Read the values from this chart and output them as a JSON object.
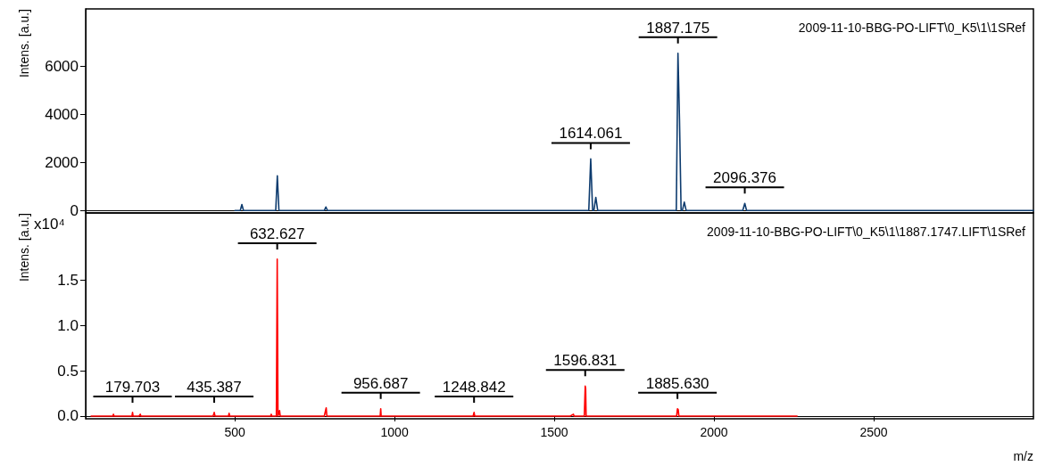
{
  "chart_data": [
    {
      "type": "line",
      "title": "2009-11-10-BBG-PO-LIFT\\0_K5\\1\\1SRef",
      "ylabel": "Intens. [a.u.]",
      "tick_labels": "y",
      "xlim": [
        33,
        3000
      ],
      "xticks": [
        500,
        1000,
        1500,
        2000,
        2500
      ],
      "ylim": [
        -100,
        8400
      ],
      "yticks": [
        0,
        2000,
        4000,
        6000
      ],
      "series": [
        {
          "color": "#0d3b6e",
          "x": [
            500,
            517,
            522,
            527,
            626,
            628,
            633,
            638,
            700,
            780,
            785,
            790,
            1100,
            1500,
            1608,
            1614.061,
            1620,
            1624,
            1630,
            1636,
            1700,
            1880,
            1882,
            1887.175,
            1892,
            1897,
            1901,
            1907,
            1913,
            2090,
            2096.376,
            2102,
            2500,
            3000
          ],
          "values": [
            0,
            0,
            250,
            0,
            0,
            0,
            1450,
            0,
            0,
            0,
            150,
            0,
            0,
            0,
            0,
            2150,
            0,
            0,
            550,
            0,
            0,
            0,
            0,
            6550,
            3800,
            0,
            0,
            350,
            0,
            0,
            300,
            0,
            0,
            0
          ]
        }
      ],
      "annotations": [
        {
          "text": "1614.061",
          "x": 1614.061,
          "y": 2150
        },
        {
          "text": "1887.175",
          "x": 1887.175,
          "y": 6550
        },
        {
          "text": "2096.376",
          "x": 2096.376,
          "y": 300
        }
      ]
    },
    {
      "type": "line",
      "title": "2009-11-10-BBG-PO-LIFT\\0_K5\\1\\1887.1747.LIFT\\1SRef",
      "xlabel": "m/z",
      "ylabel": "Intens. [a.u.]",
      "xlim": [
        33,
        3000
      ],
      "xticks": [
        500,
        1000,
        1500,
        2000,
        2500
      ],
      "ylim": [
        -0.03,
        2.24
      ],
      "yticks": [
        {
          "value": 0,
          "label": "0.0"
        },
        {
          "value": 0.5,
          "label": "0.5"
        },
        {
          "value": 1,
          "label": "1.0"
        },
        {
          "value": 1.5,
          "label": "1.5"
        }
      ],
      "series": [
        {
          "color": "#ff0000",
          "x": [
            50,
            118,
            120,
            122,
            178,
            179.703,
            181.4,
            200,
            204,
            206,
            300,
            432,
            435.387,
            438,
            480,
            482,
            484,
            600,
            612,
            614,
            616,
            630,
            631.4,
            632.627,
            633.8,
            635,
            640,
            642,
            700,
            780,
            786,
            788,
            795,
            950,
            955,
            956.687,
            958,
            1240,
            1246,
            1248.842,
            1251,
            1550,
            1560,
            1562,
            1592,
            1594,
            1596.831,
            1598.2,
            1599.6,
            1610,
            1880,
            1883,
            1885.63,
            1888,
            1890,
            2260
          ],
          "values": [
            0,
            0,
            0.02,
            0,
            0,
            0.04,
            0,
            0,
            0.02,
            0,
            0,
            0,
            0.04,
            0,
            0,
            0.03,
            0,
            0,
            0,
            0.02,
            0,
            0,
            0,
            1.73,
            0.91,
            0,
            0.06,
            0,
            0,
            0,
            0.09,
            0,
            0,
            0,
            0,
            0.08,
            0,
            0,
            0,
            0.04,
            0,
            0,
            0.02,
            0,
            0,
            0,
            0.33,
            0.3,
            0,
            0,
            0,
            0,
            0.08,
            0.07,
            0,
            0
          ]
        }
      ],
      "annotations": [
        "x10⁴",
        {
          "text": "179.703",
          "x": 179.703,
          "y": 0.04
        },
        {
          "text": "435.387",
          "x": 435.387,
          "y": 0.04
        },
        {
          "text": "632.627",
          "x": 632.627,
          "y": 1.73
        },
        {
          "text": "956.687",
          "x": 956.687,
          "y": 0.08
        },
        {
          "text": "1248.842",
          "x": 1248.842,
          "y": 0.04
        },
        {
          "text": "1596.831",
          "x": 1596.831,
          "y": 0.33
        },
        {
          "text": "1885.630",
          "x": 1885.63,
          "y": 0.08
        }
      ]
    }
  ]
}
